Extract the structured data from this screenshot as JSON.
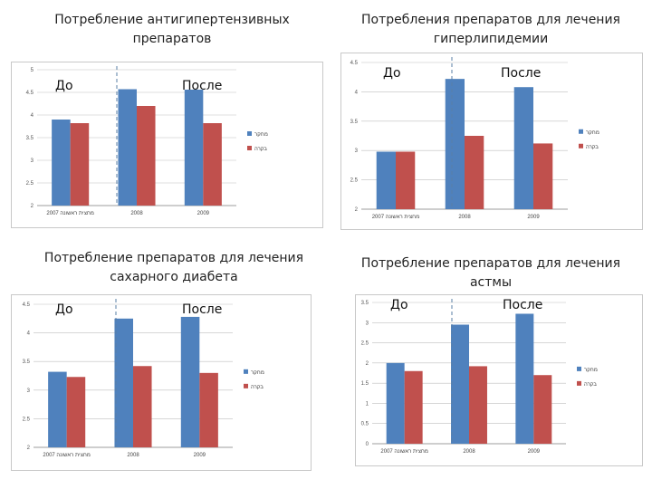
{
  "colors": {
    "series1": "#4F81BD",
    "series2": "#C0504D",
    "gridline": "#bfbfbf",
    "divider": "#5a7fa6"
  },
  "chart_data": [
    {
      "type": "bar",
      "title": "Потребление антигипертензивных\nпрепаратов",
      "categories": [
        "2007 מחצית ראשונה",
        "2008",
        "2009"
      ],
      "series": [
        {
          "name": "מחקר",
          "values": [
            3.9,
            4.57,
            4.56
          ]
        },
        {
          "name": "בקרה",
          "values": [
            3.82,
            4.2,
            3.82
          ]
        }
      ],
      "ylim": [
        2,
        5
      ],
      "yticks": [
        2,
        2.5,
        3,
        3.5,
        4,
        4.5,
        5
      ],
      "annotations": {
        "before": "До",
        "after": "После"
      }
    },
    {
      "type": "bar",
      "title": "Потребления препаратов для лечения\nгиперлипидемии",
      "categories": [
        "2007 מחצית ראשונה",
        "2008",
        "2009"
      ],
      "series": [
        {
          "name": "מחקר",
          "values": [
            2.98,
            4.22,
            4.08
          ]
        },
        {
          "name": "בקרה",
          "values": [
            2.98,
            3.25,
            3.12
          ]
        }
      ],
      "ylim": [
        2,
        4.5
      ],
      "yticks": [
        2,
        2.5,
        3,
        3.5,
        4,
        4.5
      ],
      "annotations": {
        "before": "До",
        "after": "После"
      }
    },
    {
      "type": "bar",
      "title": "Потребление препаратов для лечения\nсахарного диабета",
      "categories": [
        "2007 מחצית ראשונה",
        "2008",
        "2009"
      ],
      "series": [
        {
          "name": "מחקר",
          "values": [
            3.32,
            4.25,
            4.28
          ]
        },
        {
          "name": "בקרה",
          "values": [
            3.23,
            3.42,
            3.3
          ]
        }
      ],
      "ylim": [
        2,
        4.5
      ],
      "yticks": [
        2,
        2.5,
        3,
        3.5,
        4,
        4.5
      ],
      "annotations": {
        "before": "До",
        "after": "После"
      }
    },
    {
      "type": "bar",
      "title": "Потребление препаратов для лечения\nастмы",
      "categories": [
        "2007 מחצית ראשונה",
        "2008",
        "2009"
      ],
      "series": [
        {
          "name": "מחקר",
          "values": [
            2.0,
            2.95,
            3.22
          ]
        },
        {
          "name": "בקרה",
          "values": [
            1.8,
            1.92,
            1.7
          ]
        }
      ],
      "ylim": [
        0,
        3.5
      ],
      "yticks": [
        0,
        0.5,
        1,
        1.5,
        2,
        2.5,
        3,
        3.5
      ],
      "annotations": {
        "before": "До",
        "after": "После"
      }
    }
  ]
}
